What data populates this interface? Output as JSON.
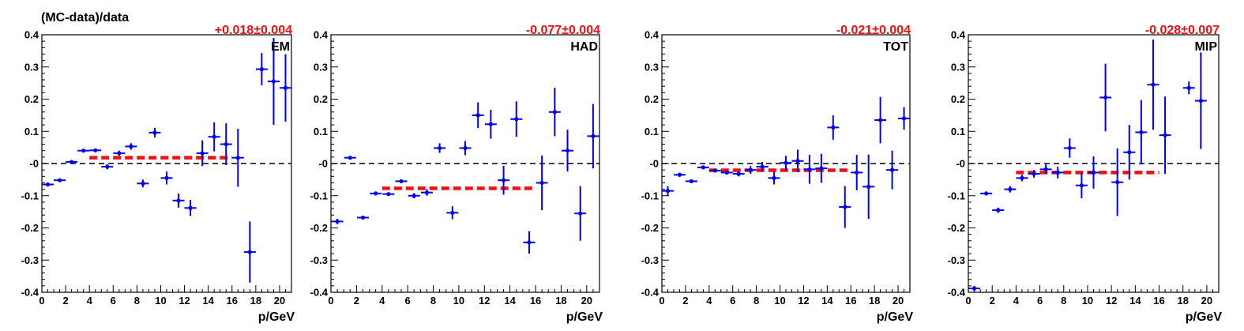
{
  "figure": {
    "ylabel": "(MC-data)/data",
    "xlabel": "p/GeV"
  },
  "colors": {
    "points": "#0000ee",
    "fit": "#ee1111",
    "zero_line": "#000000"
  },
  "chart_data": [
    {
      "type": "scatter",
      "panel_label": "EM",
      "fit_text": "+0.018±0.004",
      "fit": {
        "value": 0.018,
        "error": 0.004,
        "x_range": [
          4,
          16
        ]
      },
      "xlim": [
        0,
        21
      ],
      "ylim": [
        -0.4,
        0.4
      ],
      "xticks": [
        0,
        2,
        4,
        6,
        8,
        10,
        12,
        14,
        16,
        18,
        20
      ],
      "yticks": [
        -0.4,
        -0.3,
        -0.2,
        -0.1,
        0,
        0.1,
        0.2,
        0.3,
        0.4
      ],
      "ytick_labels": [
        "-0.4",
        "-0.3",
        "-0.2",
        "-0.1",
        "-0",
        "0.1",
        "0.2",
        "0.3",
        "0.4"
      ],
      "points": [
        {
          "x": 0.5,
          "y": -0.065,
          "err": 0.005
        },
        {
          "x": 1.5,
          "y": -0.052,
          "err": 0.005
        },
        {
          "x": 2.5,
          "y": 0.005,
          "err": 0.005
        },
        {
          "x": 3.5,
          "y": 0.04,
          "err": 0.005
        },
        {
          "x": 4.5,
          "y": 0.041,
          "err": 0.005
        },
        {
          "x": 5.5,
          "y": -0.01,
          "err": 0.008
        },
        {
          "x": 6.5,
          "y": 0.032,
          "err": 0.008
        },
        {
          "x": 7.5,
          "y": 0.053,
          "err": 0.01
        },
        {
          "x": 8.5,
          "y": -0.062,
          "err": 0.012
        },
        {
          "x": 9.5,
          "y": 0.096,
          "err": 0.015
        },
        {
          "x": 10.5,
          "y": -0.045,
          "err": 0.02
        },
        {
          "x": 11.5,
          "y": -0.115,
          "err": 0.022
        },
        {
          "x": 12.5,
          "y": -0.138,
          "err": 0.025
        },
        {
          "x": 13.5,
          "y": 0.032,
          "err": 0.04
        },
        {
          "x": 14.5,
          "y": 0.083,
          "err": 0.045
        },
        {
          "x": 15.5,
          "y": 0.06,
          "err": 0.065
        },
        {
          "x": 16.5,
          "y": 0.018,
          "err": 0.09
        },
        {
          "x": 17.5,
          "y": -0.275,
          "err": 0.095
        },
        {
          "x": 18.5,
          "y": 0.293,
          "err": 0.05
        },
        {
          "x": 19.5,
          "y": 0.255,
          "err": 0.135
        },
        {
          "x": 20.5,
          "y": 0.235,
          "err": 0.105
        }
      ]
    },
    {
      "type": "scatter",
      "panel_label": "HAD",
      "fit_text": "-0.077±0.004",
      "fit": {
        "value": -0.077,
        "error": 0.004,
        "x_range": [
          4,
          16
        ]
      },
      "xlim": [
        0,
        21
      ],
      "ylim": [
        -0.4,
        0.4
      ],
      "xticks": [
        0,
        2,
        4,
        6,
        8,
        10,
        12,
        14,
        16,
        18,
        20
      ],
      "yticks": [
        -0.4,
        -0.3,
        -0.2,
        -0.1,
        0,
        0.1,
        0.2,
        0.3,
        0.4
      ],
      "ytick_labels": [
        "-0.4",
        "-0.3",
        "-0.2",
        "-0.1",
        "-0",
        "0.1",
        "0.2",
        "0.3",
        "0.4"
      ],
      "points": [
        {
          "x": 0.5,
          "y": -0.18,
          "err": 0.008
        },
        {
          "x": 1.5,
          "y": 0.018,
          "err": 0.005
        },
        {
          "x": 2.5,
          "y": -0.168,
          "err": 0.005
        },
        {
          "x": 3.5,
          "y": -0.093,
          "err": 0.005
        },
        {
          "x": 4.5,
          "y": -0.095,
          "err": 0.005
        },
        {
          "x": 5.5,
          "y": -0.055,
          "err": 0.006
        },
        {
          "x": 6.5,
          "y": -0.1,
          "err": 0.008
        },
        {
          "x": 7.5,
          "y": -0.09,
          "err": 0.01
        },
        {
          "x": 8.5,
          "y": 0.048,
          "err": 0.015
        },
        {
          "x": 9.5,
          "y": -0.153,
          "err": 0.02
        },
        {
          "x": 10.5,
          "y": 0.048,
          "err": 0.022
        },
        {
          "x": 11.5,
          "y": 0.15,
          "err": 0.04
        },
        {
          "x": 12.5,
          "y": 0.122,
          "err": 0.045
        },
        {
          "x": 13.5,
          "y": -0.052,
          "err": 0.045
        },
        {
          "x": 14.5,
          "y": 0.138,
          "err": 0.055
        },
        {
          "x": 15.5,
          "y": -0.245,
          "err": 0.035
        },
        {
          "x": 16.5,
          "y": -0.06,
          "err": 0.085
        },
        {
          "x": 17.5,
          "y": 0.16,
          "err": 0.075
        },
        {
          "x": 18.5,
          "y": 0.04,
          "err": 0.065
        },
        {
          "x": 19.5,
          "y": -0.155,
          "err": 0.085
        },
        {
          "x": 20.5,
          "y": 0.085,
          "err": 0.1
        }
      ]
    },
    {
      "type": "scatter",
      "panel_label": "TOT",
      "fit_text": "-0.021±0.004",
      "fit": {
        "value": -0.021,
        "error": 0.004,
        "x_range": [
          4,
          16
        ]
      },
      "xlim": [
        0,
        21
      ],
      "ylim": [
        -0.4,
        0.4
      ],
      "xticks": [
        0,
        2,
        4,
        6,
        8,
        10,
        12,
        14,
        16,
        18,
        20
      ],
      "yticks": [
        -0.4,
        -0.3,
        -0.2,
        -0.1,
        0,
        0.1,
        0.2,
        0.3,
        0.4
      ],
      "ytick_labels": [
        "-0.4",
        "-0.3",
        "-0.2",
        "-0.1",
        "-0",
        "0.1",
        "0.2",
        "0.3",
        "0.4"
      ],
      "points": [
        {
          "x": 0.5,
          "y": -0.085,
          "err": 0.015
        },
        {
          "x": 1.5,
          "y": -0.035,
          "err": 0.006
        },
        {
          "x": 2.5,
          "y": -0.055,
          "err": 0.005
        },
        {
          "x": 3.5,
          "y": -0.012,
          "err": 0.005
        },
        {
          "x": 4.5,
          "y": -0.022,
          "err": 0.005
        },
        {
          "x": 5.5,
          "y": -0.028,
          "err": 0.006
        },
        {
          "x": 6.5,
          "y": -0.032,
          "err": 0.008
        },
        {
          "x": 7.5,
          "y": -0.02,
          "err": 0.012
        },
        {
          "x": 8.5,
          "y": -0.01,
          "err": 0.015
        },
        {
          "x": 9.5,
          "y": -0.045,
          "err": 0.02
        },
        {
          "x": 10.5,
          "y": 0.002,
          "err": 0.022
        },
        {
          "x": 11.5,
          "y": 0.008,
          "err": 0.035
        },
        {
          "x": 12.5,
          "y": -0.018,
          "err": 0.045
        },
        {
          "x": 13.5,
          "y": -0.015,
          "err": 0.045
        },
        {
          "x": 14.5,
          "y": 0.112,
          "err": 0.038
        },
        {
          "x": 15.5,
          "y": -0.135,
          "err": 0.065
        },
        {
          "x": 16.5,
          "y": -0.028,
          "err": 0.055
        },
        {
          "x": 17.5,
          "y": -0.072,
          "err": 0.1
        },
        {
          "x": 18.5,
          "y": 0.135,
          "err": 0.072
        },
        {
          "x": 19.5,
          "y": -0.02,
          "err": 0.06
        },
        {
          "x": 20.5,
          "y": 0.14,
          "err": 0.035
        }
      ]
    },
    {
      "type": "scatter",
      "panel_label": "MIP",
      "fit_text": "-0.028±0.007",
      "fit": {
        "value": -0.028,
        "error": 0.007,
        "x_range": [
          4,
          16
        ]
      },
      "xlim": [
        0,
        21
      ],
      "ylim": [
        -0.4,
        0.4
      ],
      "xticks": [
        0,
        2,
        4,
        6,
        8,
        10,
        12,
        14,
        16,
        18,
        20
      ],
      "yticks": [
        -0.4,
        -0.3,
        -0.2,
        -0.1,
        0,
        0.1,
        0.2,
        0.3,
        0.4
      ],
      "ytick_labels": [
        "-0.4",
        "-0.3",
        "-0.2",
        "-0.1",
        "-0",
        "0.1",
        "0.2",
        "0.3",
        "0.4"
      ],
      "points": [
        {
          "x": 0.5,
          "y": -0.388,
          "err": 0.008
        },
        {
          "x": 1.5,
          "y": -0.093,
          "err": 0.006
        },
        {
          "x": 2.5,
          "y": -0.145,
          "err": 0.008
        },
        {
          "x": 3.5,
          "y": -0.08,
          "err": 0.01
        },
        {
          "x": 4.5,
          "y": -0.045,
          "err": 0.01
        },
        {
          "x": 5.5,
          "y": -0.032,
          "err": 0.012
        },
        {
          "x": 6.5,
          "y": -0.018,
          "err": 0.015
        },
        {
          "x": 7.5,
          "y": -0.028,
          "err": 0.018
        },
        {
          "x": 8.5,
          "y": 0.048,
          "err": 0.03
        },
        {
          "x": 9.5,
          "y": -0.068,
          "err": 0.04
        },
        {
          "x": 10.5,
          "y": -0.028,
          "err": 0.05
        },
        {
          "x": 11.5,
          "y": 0.205,
          "err": 0.105
        },
        {
          "x": 12.5,
          "y": -0.058,
          "err": 0.105
        },
        {
          "x": 13.5,
          "y": 0.035,
          "err": 0.085
        },
        {
          "x": 14.5,
          "y": 0.097,
          "err": 0.1
        },
        {
          "x": 15.5,
          "y": 0.245,
          "err": 0.14
        },
        {
          "x": 16.5,
          "y": 0.088,
          "err": 0.12
        },
        {
          "x": 18.5,
          "y": 0.235,
          "err": 0.02
        },
        {
          "x": 19.5,
          "y": 0.195,
          "err": 0.15
        }
      ]
    }
  ]
}
